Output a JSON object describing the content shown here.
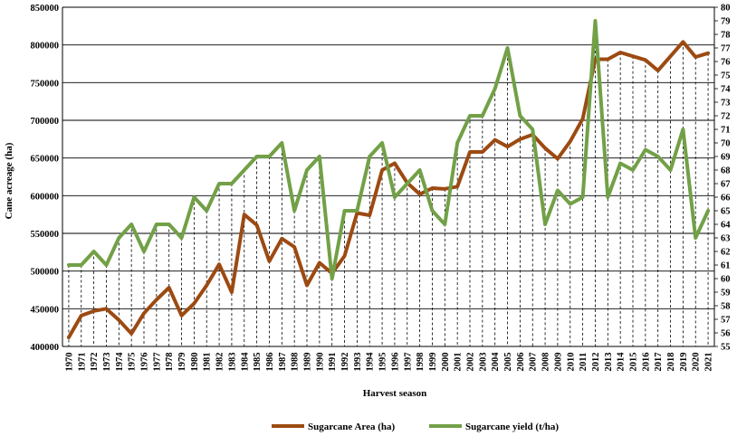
{
  "chart_data": {
    "type": "line",
    "xlabel": "Harvest season",
    "ylabel": "Cane acreage  (ha)",
    "y2label": "",
    "ylim": [
      400000,
      850000
    ],
    "y_ticks": [
      "400000",
      "450000",
      "500000",
      "550000",
      "600000",
      "650000",
      "700000",
      "750000",
      "800000",
      "850000"
    ],
    "y2lim": [
      55,
      80
    ],
    "y2_ticks": [
      "55",
      "56",
      "57",
      "58",
      "59",
      "60",
      "61",
      "62",
      "63",
      "64",
      "65",
      "66",
      "67",
      "68",
      "69",
      "70",
      "71",
      "72",
      "73",
      "74",
      "75",
      "76",
      "77",
      "78",
      "79",
      "80"
    ],
    "grid": true,
    "legend_position": "bottom",
    "x": [
      "1970",
      "1971",
      "1972",
      "1973",
      "1974",
      "1975",
      "1976",
      "1977",
      "1978",
      "1979",
      "1980",
      "1981",
      "1982",
      "1983",
      "1984",
      "1985",
      "1986",
      "1987",
      "1988",
      "1989",
      "1990",
      "1991",
      "1992",
      "1993",
      "1994",
      "1995",
      "1996",
      "1997",
      "1998",
      "1999",
      "2000",
      "2001",
      "2002",
      "2003",
      "2004",
      "2005",
      "2006",
      "2007",
      "2008",
      "2009",
      "2010",
      "2011",
      "2012",
      "2013",
      "2014",
      "2015",
      "2016",
      "2017",
      "2018",
      "2019",
      "2020",
      "2021"
    ],
    "series": [
      {
        "name": "Sugarcane Area (ha)",
        "axis": "left",
        "color": "#9c4a12",
        "values": [
          412000,
          441000,
          447000,
          450000,
          435000,
          417000,
          444000,
          462000,
          478000,
          441000,
          457000,
          481000,
          509000,
          472000,
          575000,
          561000,
          513000,
          543000,
          532000,
          481000,
          511000,
          497000,
          520000,
          577000,
          574000,
          634000,
          643000,
          617000,
          602000,
          610000,
          609000,
          612000,
          658000,
          658000,
          674000,
          665000,
          675000,
          681000,
          663000,
          649000,
          672000,
          702000,
          781000,
          781000,
          790000,
          785000,
          780000,
          766000,
          785000,
          804000,
          784000,
          789000
        ]
      },
      {
        "name": "Sugarcane  yield (t/ha)",
        "axis": "right",
        "color": "#72a047",
        "values": [
          61.0,
          61.0,
          62.0,
          61.0,
          63.0,
          64.0,
          62.0,
          64.0,
          64.0,
          63.0,
          66.0,
          65.0,
          67.0,
          67.0,
          68.0,
          69.0,
          69.0,
          70.0,
          65.0,
          68.0,
          69.0,
          60.0,
          65.0,
          65.0,
          69.0,
          70.0,
          66.0,
          67.0,
          68.0,
          65.0,
          64.0,
          70.0,
          72.0,
          72.0,
          74.0,
          77.0,
          72.0,
          71.0,
          64.0,
          66.5,
          65.5,
          66.0,
          79.0,
          66.0,
          68.5,
          68.0,
          69.5,
          69.0,
          68.0,
          71.0,
          63.0,
          65.0
        ]
      }
    ]
  }
}
